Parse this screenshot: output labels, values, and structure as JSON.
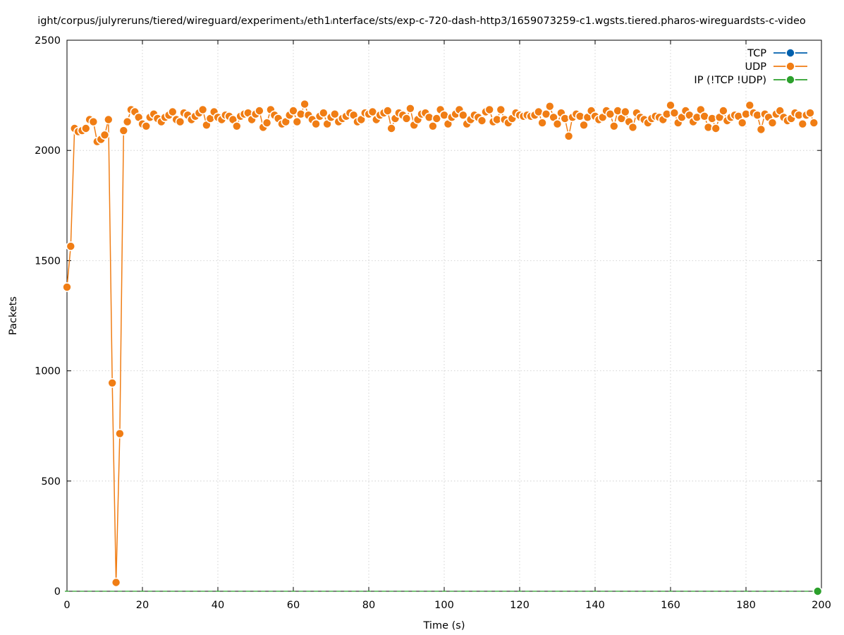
{
  "chart_data": {
    "type": "line",
    "title": "ight/corpus/julyreruns/tiered/wireguard/experiment₃/eth1ᵢnterface/sts/exp-c-720-dash-http3/1659073259-c1.wgsts.tiered.pharos-wireguardsts-c-video",
    "xlabel": "Time (s)",
    "ylabel": "Packets",
    "xlim": [
      0,
      200
    ],
    "ylim": [
      0,
      2500
    ],
    "x_ticks": [
      "0",
      "20",
      "40",
      "60",
      "80",
      "100",
      "120",
      "140",
      "160",
      "180",
      "200"
    ],
    "y_ticks": [
      "0",
      "500",
      "1000",
      "1500",
      "2000",
      "2500"
    ],
    "grid": true,
    "legend_position": "top-right",
    "series": [
      {
        "name": "TCP",
        "color": "#0060ad",
        "points": [
          [
            199,
            0
          ]
        ]
      },
      {
        "name": "UDP",
        "color": "#f07d14",
        "points": [
          [
            0,
            1380
          ],
          [
            1,
            1565
          ],
          [
            2,
            2100
          ],
          [
            3,
            2085
          ],
          [
            4,
            2090
          ],
          [
            5,
            2100
          ],
          [
            6,
            2140
          ],
          [
            7,
            2130
          ],
          [
            8,
            2040
          ],
          [
            9,
            2050
          ],
          [
            10,
            2070
          ],
          [
            11,
            2140
          ],
          [
            12,
            945
          ],
          [
            13,
            40
          ],
          [
            14,
            715
          ],
          [
            15,
            2090
          ],
          [
            16,
            2130
          ],
          [
            17,
            2185
          ],
          [
            18,
            2175
          ],
          [
            19,
            2150
          ],
          [
            20,
            2120
          ],
          [
            21,
            2110
          ],
          [
            22,
            2150
          ],
          [
            23,
            2165
          ],
          [
            24,
            2145
          ],
          [
            25,
            2130
          ],
          [
            26,
            2150
          ],
          [
            27,
            2160
          ],
          [
            28,
            2175
          ],
          [
            29,
            2140
          ],
          [
            30,
            2130
          ],
          [
            31,
            2170
          ],
          [
            32,
            2160
          ],
          [
            33,
            2140
          ],
          [
            34,
            2155
          ],
          [
            35,
            2170
          ],
          [
            36,
            2185
          ],
          [
            37,
            2115
          ],
          [
            38,
            2145
          ],
          [
            39,
            2175
          ],
          [
            40,
            2150
          ],
          [
            41,
            2140
          ],
          [
            42,
            2160
          ],
          [
            43,
            2155
          ],
          [
            44,
            2140
          ],
          [
            45,
            2110
          ],
          [
            46,
            2155
          ],
          [
            47,
            2165
          ],
          [
            48,
            2170
          ],
          [
            49,
            2140
          ],
          [
            50,
            2165
          ],
          [
            51,
            2180
          ],
          [
            52,
            2105
          ],
          [
            53,
            2125
          ],
          [
            54,
            2185
          ],
          [
            55,
            2160
          ],
          [
            56,
            2145
          ],
          [
            57,
            2120
          ],
          [
            58,
            2130
          ],
          [
            59,
            2160
          ],
          [
            60,
            2180
          ],
          [
            61,
            2130
          ],
          [
            62,
            2165
          ],
          [
            63,
            2210
          ],
          [
            64,
            2160
          ],
          [
            65,
            2140
          ],
          [
            66,
            2120
          ],
          [
            67,
            2155
          ],
          [
            68,
            2170
          ],
          [
            69,
            2120
          ],
          [
            70,
            2150
          ],
          [
            71,
            2165
          ],
          [
            72,
            2130
          ],
          [
            73,
            2145
          ],
          [
            74,
            2155
          ],
          [
            75,
            2170
          ],
          [
            76,
            2160
          ],
          [
            77,
            2130
          ],
          [
            78,
            2140
          ],
          [
            79,
            2170
          ],
          [
            80,
            2165
          ],
          [
            81,
            2175
          ],
          [
            82,
            2140
          ],
          [
            83,
            2160
          ],
          [
            84,
            2170
          ],
          [
            85,
            2180
          ],
          [
            86,
            2100
          ],
          [
            87,
            2145
          ],
          [
            88,
            2170
          ],
          [
            89,
            2160
          ],
          [
            90,
            2145
          ],
          [
            91,
            2190
          ],
          [
            92,
            2115
          ],
          [
            93,
            2140
          ],
          [
            94,
            2165
          ],
          [
            95,
            2170
          ],
          [
            96,
            2150
          ],
          [
            97,
            2110
          ],
          [
            98,
            2145
          ],
          [
            99,
            2185
          ],
          [
            100,
            2160
          ],
          [
            101,
            2120
          ],
          [
            102,
            2150
          ],
          [
            103,
            2165
          ],
          [
            104,
            2185
          ],
          [
            105,
            2160
          ],
          [
            106,
            2120
          ],
          [
            107,
            2140
          ],
          [
            108,
            2160
          ],
          [
            109,
            2150
          ],
          [
            110,
            2135
          ],
          [
            111,
            2175
          ],
          [
            112,
            2185
          ],
          [
            113,
            2130
          ],
          [
            114,
            2140
          ],
          [
            115,
            2185
          ],
          [
            116,
            2140
          ],
          [
            117,
            2125
          ],
          [
            118,
            2145
          ],
          [
            119,
            2170
          ],
          [
            120,
            2160
          ],
          [
            121,
            2155
          ],
          [
            122,
            2160
          ],
          [
            123,
            2155
          ],
          [
            124,
            2160
          ],
          [
            125,
            2175
          ],
          [
            126,
            2125
          ],
          [
            127,
            2165
          ],
          [
            128,
            2200
          ],
          [
            129,
            2150
          ],
          [
            130,
            2120
          ],
          [
            131,
            2170
          ],
          [
            132,
            2145
          ],
          [
            133,
            2065
          ],
          [
            134,
            2150
          ],
          [
            135,
            2165
          ],
          [
            136,
            2155
          ],
          [
            137,
            2115
          ],
          [
            138,
            2150
          ],
          [
            139,
            2180
          ],
          [
            140,
            2155
          ],
          [
            141,
            2140
          ],
          [
            142,
            2150
          ],
          [
            143,
            2180
          ],
          [
            144,
            2165
          ],
          [
            145,
            2110
          ],
          [
            146,
            2180
          ],
          [
            147,
            2145
          ],
          [
            148,
            2175
          ],
          [
            149,
            2130
          ],
          [
            150,
            2105
          ],
          [
            151,
            2170
          ],
          [
            152,
            2150
          ],
          [
            153,
            2140
          ],
          [
            154,
            2125
          ],
          [
            155,
            2145
          ],
          [
            156,
            2155
          ],
          [
            157,
            2150
          ],
          [
            158,
            2140
          ],
          [
            159,
            2165
          ],
          [
            160,
            2205
          ],
          [
            161,
            2170
          ],
          [
            162,
            2125
          ],
          [
            163,
            2150
          ],
          [
            164,
            2180
          ],
          [
            165,
            2160
          ],
          [
            166,
            2130
          ],
          [
            167,
            2150
          ],
          [
            168,
            2185
          ],
          [
            169,
            2155
          ],
          [
            170,
            2105
          ],
          [
            171,
            2145
          ],
          [
            172,
            2100
          ],
          [
            173,
            2150
          ],
          [
            174,
            2180
          ],
          [
            175,
            2135
          ],
          [
            176,
            2150
          ],
          [
            177,
            2160
          ],
          [
            178,
            2155
          ],
          [
            179,
            2125
          ],
          [
            180,
            2165
          ],
          [
            181,
            2205
          ],
          [
            182,
            2170
          ],
          [
            183,
            2160
          ],
          [
            184,
            2095
          ],
          [
            185,
            2165
          ],
          [
            186,
            2150
          ],
          [
            187,
            2125
          ],
          [
            188,
            2165
          ],
          [
            189,
            2180
          ],
          [
            190,
            2150
          ],
          [
            191,
            2135
          ],
          [
            192,
            2145
          ],
          [
            193,
            2170
          ],
          [
            194,
            2160
          ],
          [
            195,
            2120
          ],
          [
            196,
            2160
          ],
          [
            197,
            2170
          ],
          [
            198,
            2125
          ]
        ]
      },
      {
        "name": "IP (!TCP  !UDP)",
        "color": "#2ca02c",
        "points": [
          [
            199,
            0
          ]
        ]
      }
    ]
  }
}
